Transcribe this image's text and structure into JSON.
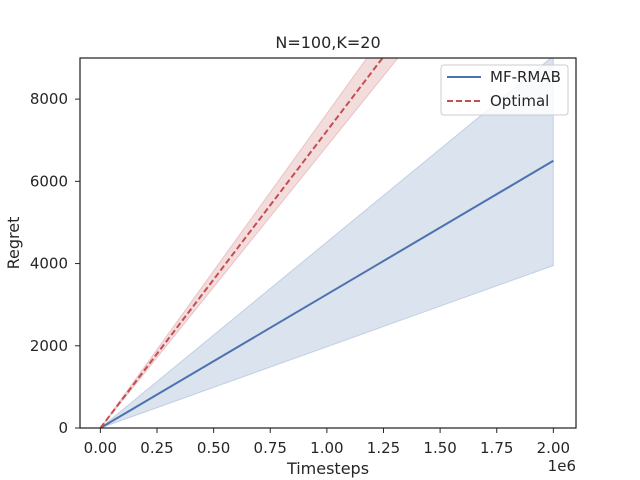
{
  "chart_data": {
    "type": "line",
    "title": "N=100,K=20",
    "xlabel": "Timesteps",
    "ylabel": "Regret",
    "x_offset_label": "1e6",
    "xlim": [
      -0.09,
      2.1
    ],
    "ylim": [
      0,
      9000
    ],
    "x_ticks": [
      0.0,
      0.25,
      0.5,
      0.75,
      1.0,
      1.25,
      1.5,
      1.75,
      2.0
    ],
    "x_tick_labels": [
      "0.00",
      "0.25",
      "0.50",
      "0.75",
      "1.00",
      "1.25",
      "1.50",
      "1.75",
      "2.00"
    ],
    "y_ticks": [
      0,
      2000,
      4000,
      6000,
      8000
    ],
    "y_tick_labels": [
      "0",
      "2000",
      "4000",
      "6000",
      "8000"
    ],
    "grid": false,
    "legend_position": "top-right",
    "series": [
      {
        "name": "MF-RMAB",
        "color": "#4c72b0",
        "style": "solid",
        "x": [
          0.0,
          2.0
        ],
        "y": [
          0,
          6500
        ],
        "band_lower": [
          0,
          3950
        ],
        "band_upper": [
          0,
          9050
        ]
      },
      {
        "name": "Optimal",
        "color": "#c44e52",
        "style": "dashed",
        "x": [
          0.0,
          2.0
        ],
        "y": [
          0,
          14450
        ],
        "band_lower": [
          0,
          13700
        ],
        "band_upper": [
          0,
          15300
        ]
      }
    ]
  }
}
